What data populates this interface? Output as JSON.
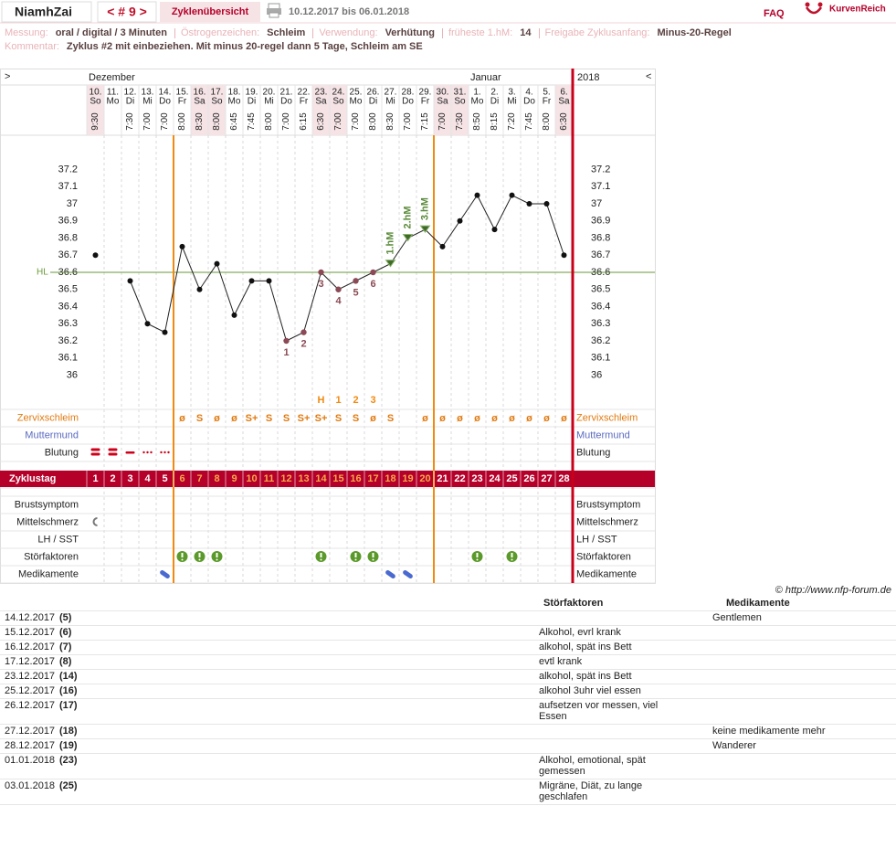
{
  "header": {
    "user": "NiamhZai",
    "cycle_nav": "< # 9 >",
    "overview": "Zyklenübersicht",
    "range": "10.12.2017 bis 06.01.2018",
    "faq": "FAQ",
    "brand": "KurvenReich"
  },
  "info": {
    "fields": [
      {
        "label": "Messung:",
        "value": "oral / digital / 3 Minuten"
      },
      {
        "label": "Östrogenzeichen:",
        "value": "Schleim"
      },
      {
        "label": "Verwendung:",
        "value": "Verhütung"
      },
      {
        "label": "früheste 1.hM:",
        "value": "14"
      },
      {
        "label": "Freigabe Zyklusanfang:",
        "value": "Minus-20-Regel"
      }
    ],
    "comment_label": "Kommentar:",
    "comment": "Zyklus #2  mit einbeziehen. Mit minus 20-regel dann 5 Tage,  Schleim am SE"
  },
  "chart": {
    "type": "line",
    "nav_left": ">",
    "nav_right": "<",
    "months": [
      "Dezember",
      "Januar"
    ],
    "year": "2018",
    "day_numbers": [
      "10.",
      "11.",
      "12.",
      "13.",
      "14.",
      "15.",
      "16.",
      "17.",
      "18.",
      "19.",
      "20.",
      "21.",
      "22.",
      "23.",
      "24.",
      "25.",
      "26.",
      "27.",
      "28.",
      "29.",
      "30.",
      "31.",
      "1.",
      "2.",
      "3.",
      "4.",
      "5.",
      "6."
    ],
    "weekdays": [
      "So",
      "Mo",
      "Di",
      "Mi",
      "Do",
      "Fr",
      "Sa",
      "So",
      "Mo",
      "Di",
      "Mi",
      "Do",
      "Fr",
      "Sa",
      "So",
      "Mo",
      "Di",
      "Mi",
      "Do",
      "Fr",
      "Sa",
      "So",
      "Mo",
      "Di",
      "Mi",
      "Do",
      "Fr",
      "Sa"
    ],
    "times": [
      "9:30",
      null,
      "7:30",
      "7:00",
      "7:00",
      "8:00",
      "8:30",
      "8:00",
      "6:45",
      "7:45",
      "8:00",
      "7:00",
      "6:15",
      "6:30",
      "7:00",
      "7:00",
      "8:00",
      "8:30",
      "7:00",
      "7:15",
      "7:00",
      "7:30",
      "8:50",
      "8:15",
      "7:20",
      "7:45",
      "8:00",
      "6:30"
    ],
    "values": [
      36.7,
      null,
      36.55,
      36.3,
      36.25,
      36.75,
      36.5,
      36.65,
      36.35,
      36.55,
      36.55,
      36.2,
      36.25,
      36.6,
      36.5,
      36.55,
      36.6,
      36.65,
      36.8,
      36.85,
      36.75,
      36.9,
      37.05,
      36.85,
      37.05,
      37.0,
      37.0,
      36.7
    ],
    "ylim": [
      35.8,
      37.4
    ],
    "yticks": [
      36,
      36.1,
      36.2,
      36.3,
      36.4,
      36.5,
      36.6,
      36.7,
      36.8,
      36.9,
      37,
      37.1,
      37.2
    ],
    "coverline": {
      "label": "HL",
      "value": 36.6,
      "color": "#6a9a3a"
    },
    "low_labels": [
      null,
      null,
      null,
      null,
      null,
      null,
      null,
      null,
      null,
      null,
      null,
      "1",
      "2",
      "3",
      "4",
      "5",
      "6",
      null,
      null,
      null,
      null,
      null,
      null,
      null,
      null,
      null,
      null,
      null
    ],
    "hm_labels": [
      null,
      null,
      null,
      null,
      null,
      null,
      null,
      null,
      null,
      null,
      null,
      null,
      null,
      null,
      null,
      null,
      null,
      "1.hM",
      "2.hM",
      "3.hM",
      null,
      null,
      null,
      null,
      null,
      null,
      null,
      null
    ],
    "mucus_peak": [
      null,
      null,
      null,
      null,
      null,
      null,
      null,
      null,
      null,
      null,
      null,
      null,
      null,
      "H",
      "1",
      "2",
      "3",
      null,
      null,
      null,
      null,
      null,
      null,
      null,
      null,
      null,
      null,
      null
    ],
    "mucus": [
      null,
      null,
      null,
      null,
      null,
      "ø",
      "S",
      "ø",
      "ø",
      "S+",
      "S",
      "S",
      "S+",
      "S+",
      "S",
      "S",
      "ø",
      "S",
      null,
      "ø",
      "ø",
      "ø",
      "ø",
      "ø",
      "ø",
      "ø",
      "ø",
      "ø"
    ],
    "row_labels": [
      "Zervixschleim",
      "Muttermund",
      "Blutung",
      "Zyklustag",
      "Brustsymptom",
      "Mittelschmerz",
      "LH / SST",
      "Störfaktoren",
      "Medikamente"
    ],
    "cycle_days": [
      "1",
      "2",
      "3",
      "4",
      "5",
      "6",
      "7",
      "8",
      "9",
      "10",
      "11",
      "12",
      "13",
      "14",
      "15",
      "16",
      "17",
      "18",
      "19",
      "20",
      "21",
      "22",
      "23",
      "24",
      "25",
      "26",
      "27",
      "28"
    ]
  },
  "footer": {
    "copyright": "© http://www.nfp-forum.de",
    "col_factors": "Störfaktoren",
    "col_meds": "Medikamente",
    "rows": [
      [
        "14.12.2017",
        "(5)",
        "",
        "Gentlemen"
      ],
      [
        "15.12.2017",
        "(6)",
        "Alkohol, evrl krank",
        ""
      ],
      [
        "16.12.2017",
        "(7)",
        "alkohol, spät ins Bett",
        ""
      ],
      [
        "17.12.2017",
        "(8)",
        "evtl krank",
        ""
      ],
      [
        "23.12.2017",
        "(14)",
        "alkohol, spät ins Bett",
        ""
      ],
      [
        "25.12.2017",
        "(16)",
        "alkohol 3uhr viel essen",
        ""
      ],
      [
        "26.12.2017",
        "(17)",
        "aufsetzen vor messen, viel Essen",
        ""
      ],
      [
        "27.12.2017",
        "(18)",
        "",
        "keine medikamente mehr"
      ],
      [
        "28.12.2017",
        "(19)",
        "",
        "Wanderer"
      ],
      [
        "01.01.2018",
        "(23)",
        "Alkohol, emotional, spät gemessen",
        ""
      ],
      [
        "03.01.2018",
        "(25)",
        "Migräne, Diät, zu lange geschlafen",
        ""
      ]
    ]
  }
}
